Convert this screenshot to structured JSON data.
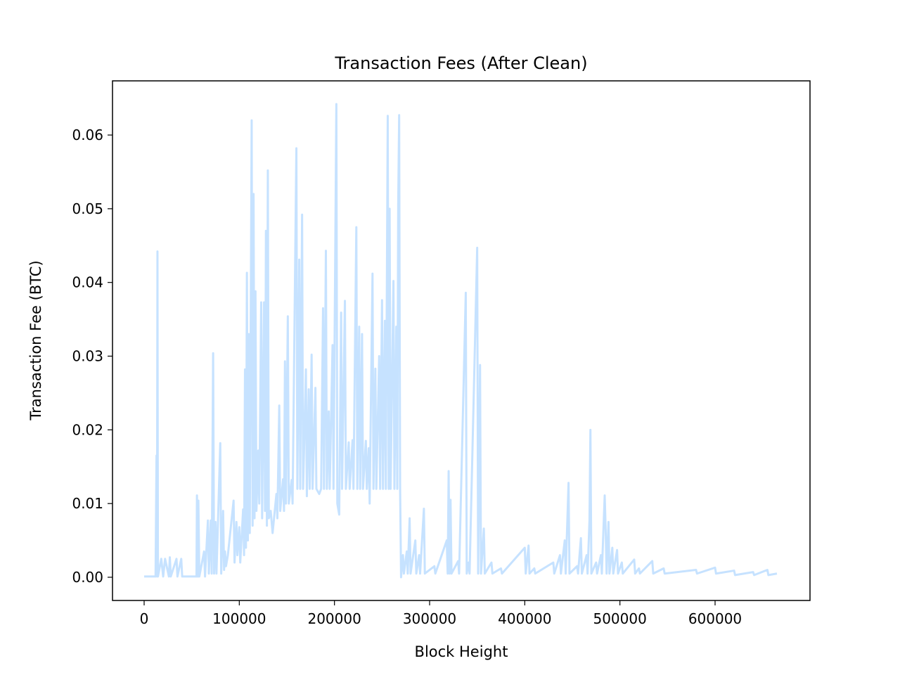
{
  "chart_data": {
    "type": "line",
    "title": "Transaction Fees (After Clean)",
    "x_label": "Block Height",
    "y_label": "Transaction Fee (BTC)",
    "color": "#c6e2ff",
    "x": [
      0,
      12000,
      13000,
      13500,
      14000,
      14500,
      18000,
      20000,
      22000,
      26000,
      27000,
      28000,
      34000,
      35000,
      39000,
      40000,
      55000,
      55500,
      56500,
      57000,
      58000,
      63000,
      64000,
      67000,
      68000,
      70000,
      71000,
      72500,
      73500,
      75000,
      76000,
      80000,
      81000,
      83000,
      84000,
      85000,
      86000,
      88000,
      94000,
      95000,
      97000,
      98000,
      100000,
      101000,
      104000,
      105000,
      106000,
      107000,
      108000,
      109000,
      110000,
      111000,
      113000,
      114000,
      115000,
      116000,
      117000,
      118000,
      120000,
      121000,
      123000,
      124000,
      126000,
      127000,
      128000,
      129000,
      130000,
      131000,
      133000,
      135000,
      139000,
      140000,
      142000,
      143000,
      146000,
      147000,
      148000,
      149000,
      151000,
      152000,
      155000,
      156000,
      160000,
      161000,
      163000,
      164000,
      166000,
      167000,
      168000,
      170000,
      171000,
      173000,
      174000,
      176000,
      177000,
      180000,
      181000,
      184000,
      186000,
      188000,
      189000,
      191000,
      192000,
      194000,
      195000,
      198000,
      199000,
      202000,
      203000,
      205000,
      207000,
      208000,
      211000,
      212000,
      215000,
      216000,
      219000,
      220000,
      223000,
      224000,
      226000,
      227000,
      229000,
      230000,
      233000,
      234000,
      236000,
      237000,
      240000,
      241000,
      243000,
      244000,
      247000,
      248000,
      250000,
      251000,
      253000,
      254000,
      256000,
      257000,
      258000,
      259000,
      262000,
      263000,
      265000,
      266000,
      267000,
      268000,
      269000,
      270000,
      272000,
      273000,
      276000,
      277000,
      279000,
      280000,
      285000,
      286000,
      289000,
      290000,
      294000,
      295000,
      305000,
      306000,
      318000,
      319000,
      320000,
      321000,
      322000,
      323000,
      330000,
      331000,
      338000,
      339000,
      341000,
      342000,
      350000,
      351000,
      353000,
      354000,
      357000,
      358000,
      365000,
      366000,
      375000,
      376000,
      400000,
      401000,
      404000,
      405000,
      410000,
      411000,
      430000,
      431000,
      437000,
      438000,
      442000,
      443000,
      446000,
      447000,
      455000,
      456000,
      459000,
      460000,
      465000,
      466000,
      468000,
      469000,
      470000,
      475000,
      476000,
      480000,
      481000,
      484000,
      485000,
      486000,
      488000,
      489000,
      492000,
      493000,
      497000,
      498000,
      502000,
      503000,
      515000,
      516000,
      520000,
      521000,
      534000,
      535000,
      546000,
      547000,
      580000,
      581000,
      600000,
      601000,
      620000,
      621000,
      640000,
      641000,
      655000,
      656000,
      665000
    ],
    "values": [
      0.0001,
      0.0001,
      0.0165,
      0.0001,
      0.0442,
      0.0001,
      0.0025,
      0.0001,
      0.0025,
      0.0001,
      0.0027,
      0.0001,
      0.0025,
      0.0001,
      0.0025,
      0.0001,
      0.0001,
      0.0111,
      0.0001,
      0.0104,
      0.0001,
      0.0035,
      0.0001,
      0.0077,
      0.0005,
      0.0077,
      0.0005,
      0.0304,
      0.0005,
      0.0075,
      0.0005,
      0.0182,
      0.0005,
      0.009,
      0.001,
      0.0035,
      0.0015,
      0.003,
      0.0104,
      0.002,
      0.0075,
      0.003,
      0.0068,
      0.002,
      0.0092,
      0.003,
      0.0282,
      0.004,
      0.0413,
      0.005,
      0.033,
      0.006,
      0.062,
      0.007,
      0.052,
      0.008,
      0.0388,
      0.009,
      0.0172,
      0.01,
      0.0373,
      0.008,
      0.0373,
      0.009,
      0.047,
      0.007,
      0.0552,
      0.008,
      0.009,
      0.006,
      0.0113,
      0.008,
      0.0233,
      0.009,
      0.0133,
      0.009,
      0.0293,
      0.01,
      0.0354,
      0.01,
      0.0132,
      0.01,
      0.0582,
      0.012,
      0.0431,
      0.012,
      0.0492,
      0.012,
      0.017,
      0.0282,
      0.011,
      0.0255,
      0.012,
      0.0302,
      0.012,
      0.0257,
      0.012,
      0.0113,
      0.012,
      0.0365,
      0.012,
      0.0443,
      0.012,
      0.0225,
      0.012,
      0.0315,
      0.012,
      0.0642,
      0.01,
      0.0085,
      0.0359,
      0.012,
      0.0375,
      0.012,
      0.0183,
      0.012,
      0.0186,
      0.012,
      0.0475,
      0.012,
      0.034,
      0.012,
      0.033,
      0.012,
      0.0185,
      0.012,
      0.0175,
      0.01,
      0.0412,
      0.012,
      0.0283,
      0.012,
      0.03,
      0.012,
      0.0376,
      0.012,
      0.0348,
      0.012,
      0.0626,
      0.012,
      0.05,
      0.012,
      0.0402,
      0.012,
      0.034,
      0.012,
      0.0505,
      0.0627,
      0.012,
      0.0,
      0.003,
      0.0005,
      0.0035,
      0.0005,
      0.008,
      0.0005,
      0.005,
      0.0005,
      0.003,
      0.0005,
      0.0093,
      0.0005,
      0.0015,
      0.0005,
      0.005,
      0.0005,
      0.0144,
      0.0005,
      0.0105,
      0.0005,
      0.0022,
      0.0005,
      0.0386,
      0.0005,
      0.002,
      0.0005,
      0.0447,
      0.0005,
      0.0288,
      0.0005,
      0.0066,
      0.0005,
      0.002,
      0.0005,
      0.0012,
      0.0005,
      0.004,
      0.0005,
      0.0043,
      0.0005,
      0.0012,
      0.0005,
      0.002,
      0.0005,
      0.003,
      0.0005,
      0.005,
      0.0005,
      0.0128,
      0.0005,
      0.0015,
      0.0005,
      0.0053,
      0.0005,
      0.003,
      0.0005,
      0.0077,
      0.02,
      0.0005,
      0.002,
      0.0005,
      0.003,
      0.0005,
      0.0111,
      0.0065,
      0.0005,
      0.0075,
      0.0005,
      0.004,
      0.0005,
      0.0037,
      0.0005,
      0.002,
      0.0005,
      0.0024,
      0.0005,
      0.0012,
      0.0005,
      0.0022,
      0.0005,
      0.0012,
      0.0005,
      0.001,
      0.0005,
      0.0013,
      0.0005,
      0.0009,
      0.0003,
      0.0007,
      0.0003,
      0.001,
      0.0003,
      0.0005
    ],
    "xlim": [
      -33250,
      699750
    ],
    "ylim": [
      -0.00315,
      0.06735
    ],
    "xticks": [
      0,
      100000,
      200000,
      300000,
      400000,
      500000,
      600000
    ],
    "yticks": [
      {
        "value": 0,
        "label": "0.00"
      },
      {
        "value": 0.01,
        "label": "0.01"
      },
      {
        "value": 0.02,
        "label": "0.02"
      },
      {
        "value": 0.03,
        "label": "0.03"
      },
      {
        "value": 0.04,
        "label": "0.04"
      },
      {
        "value": 0.05,
        "label": "0.05"
      },
      {
        "value": 0.06,
        "label": "0.06"
      }
    ]
  }
}
